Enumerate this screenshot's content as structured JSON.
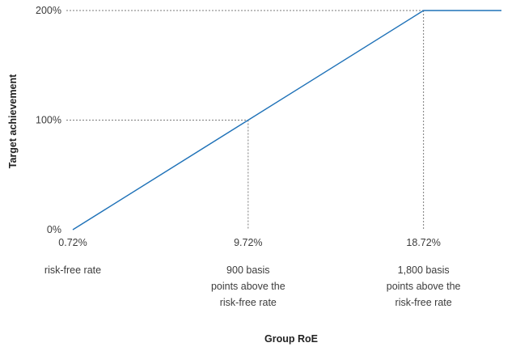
{
  "chart_data": {
    "type": "line",
    "xlabel": "Group RoE",
    "ylabel": "Target achievement",
    "x_ticks": [
      "0.72%",
      "9.72%",
      "18.72%"
    ],
    "y_ticks": [
      "0%",
      "100%",
      "200%"
    ],
    "x_tick_values": [
      0.72,
      9.72,
      18.72
    ],
    "y_tick_values": [
      0,
      100,
      200
    ],
    "xlim": [
      0.72,
      22.72
    ],
    "ylim": [
      0,
      200
    ],
    "series": [
      {
        "x": [
          0.72,
          9.72,
          18.72,
          22.72
        ],
        "y": [
          0,
          100,
          200,
          200
        ]
      }
    ],
    "reference_points": [
      {
        "x": 9.72,
        "y": 100
      },
      {
        "x": 18.72,
        "y": 200
      }
    ],
    "x_annotations": [
      [
        "risk-free rate"
      ],
      [
        "900 basis",
        "points above the",
        "risk-free rate"
      ],
      [
        "1,800 basis",
        "points above the",
        "risk-free rate"
      ]
    ],
    "colors": {
      "line": "#1f72b8",
      "guides": "#7a7a7a"
    },
    "grid": false
  }
}
